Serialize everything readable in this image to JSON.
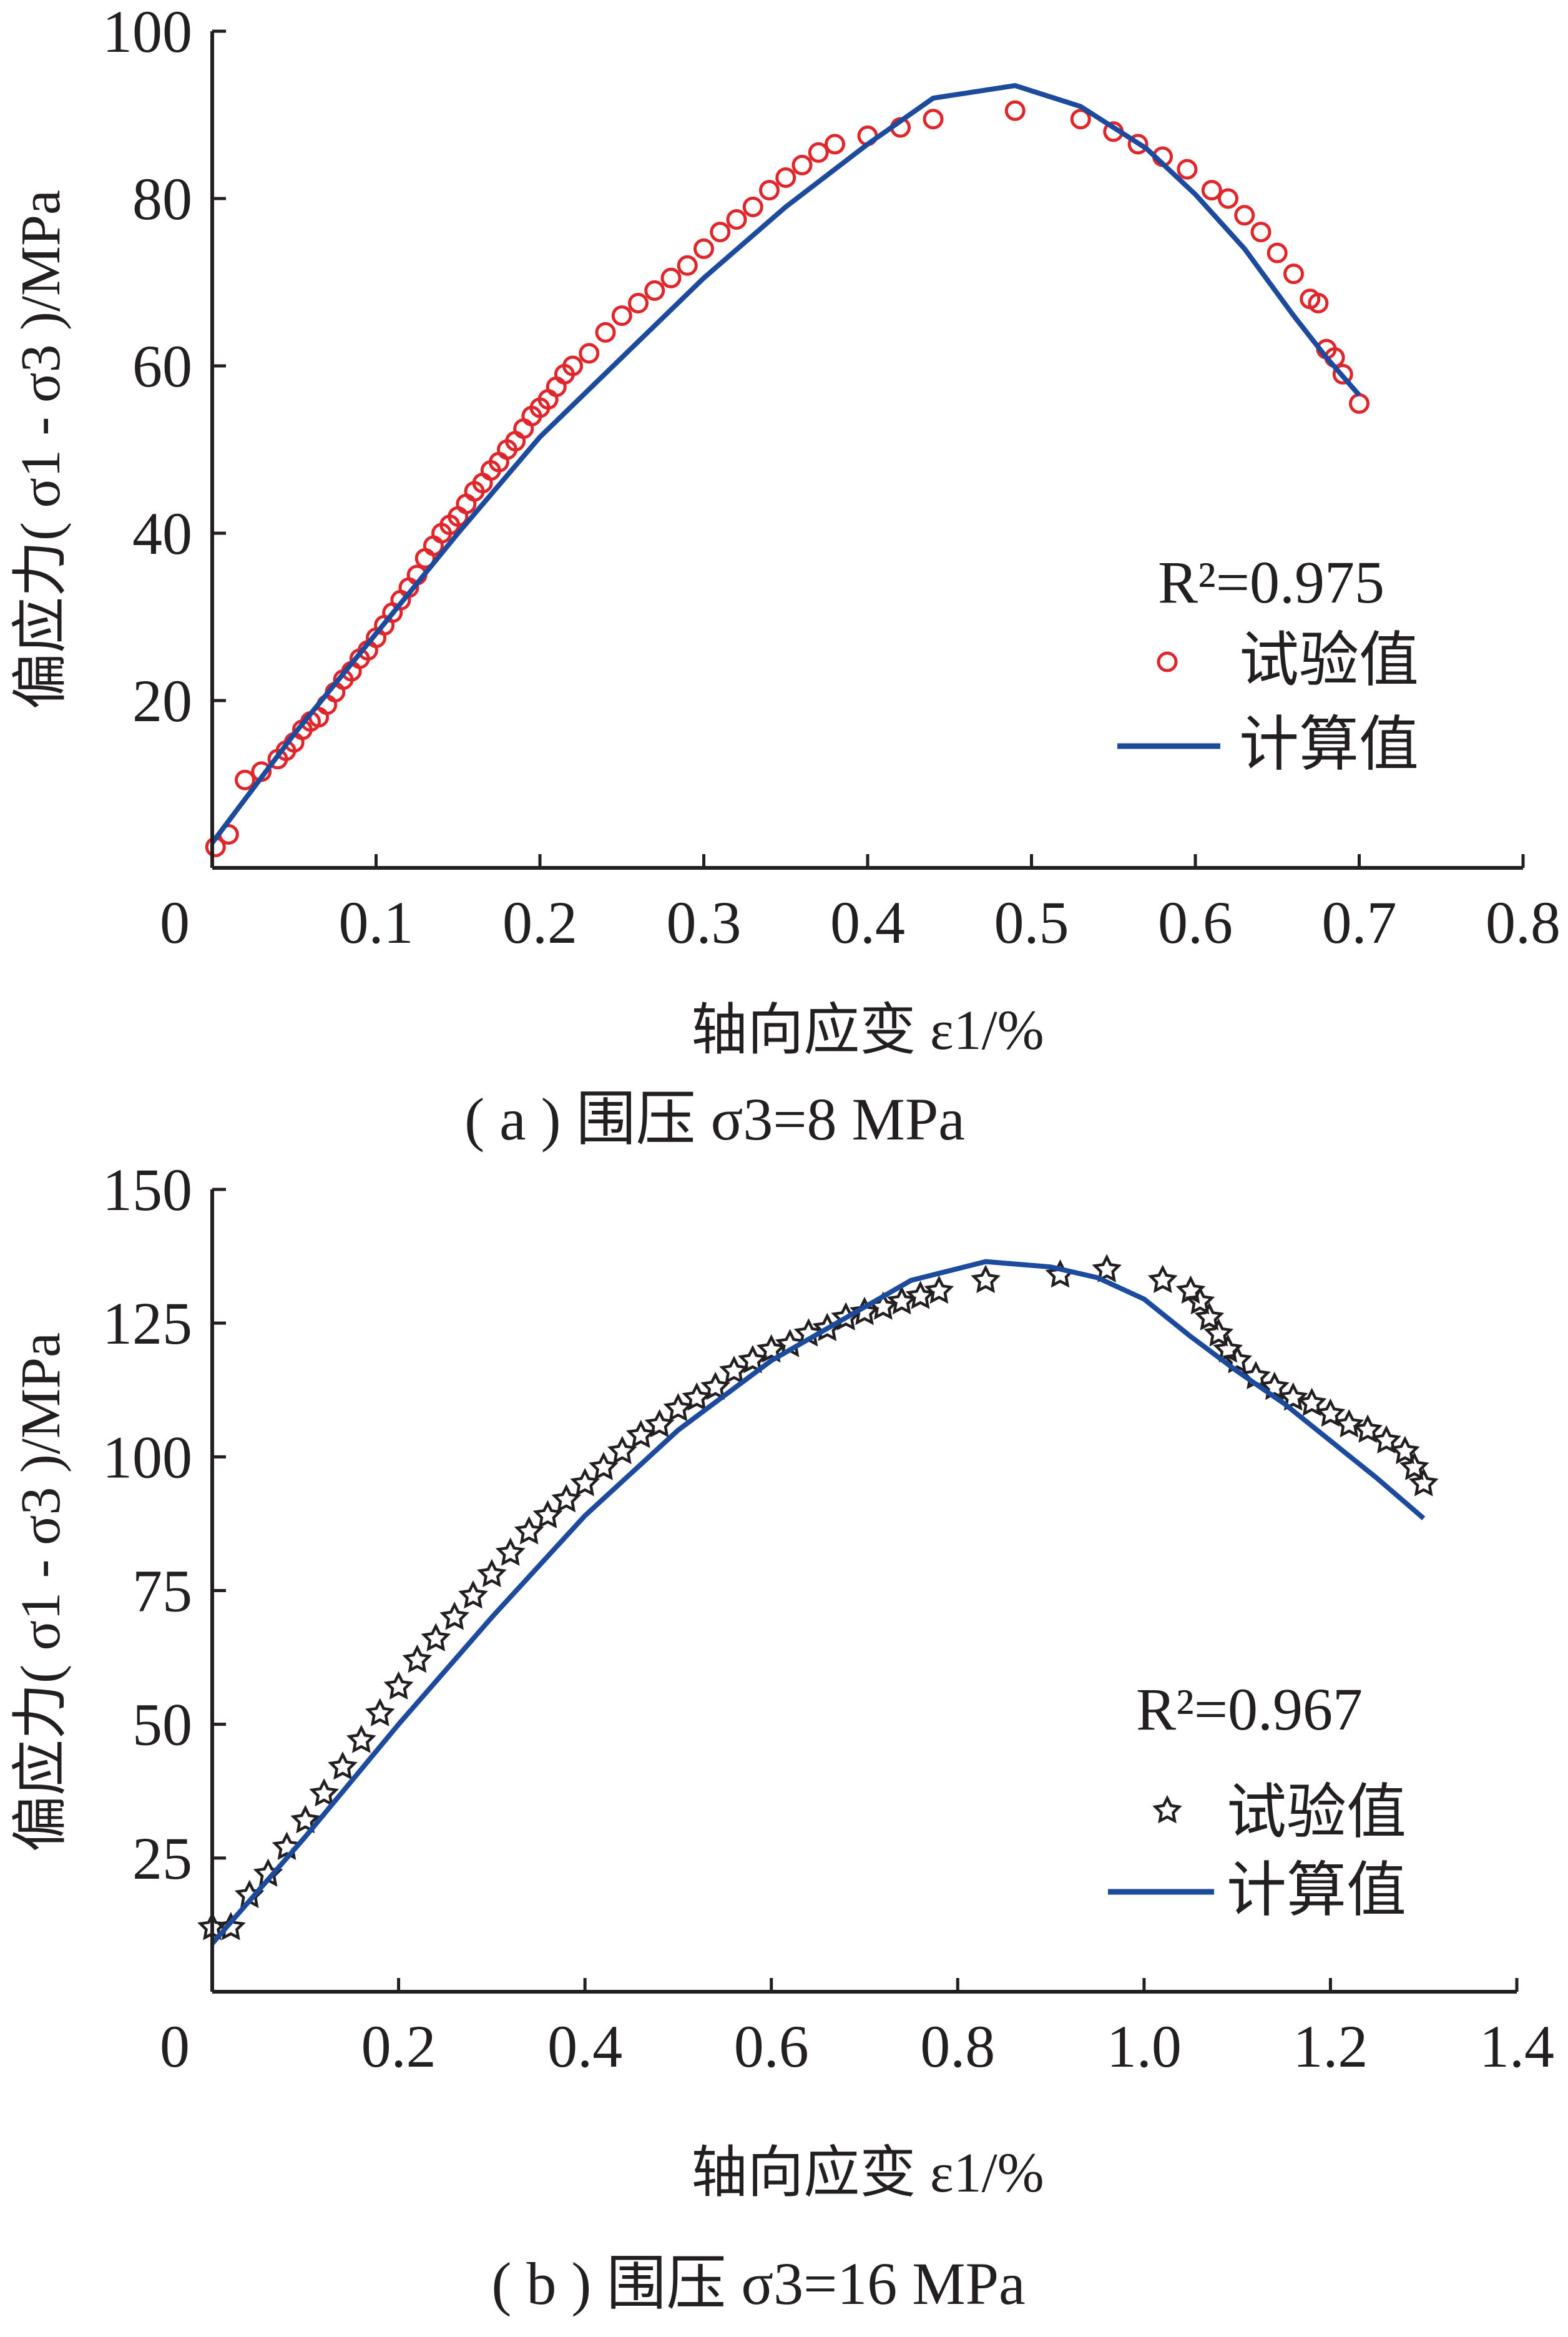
{
  "chart_data": [
    {
      "id": "a",
      "type": "scatter",
      "caption": "( a ) 围压 σ3=8 MPa",
      "xlabel": "轴向应变 ε1/%",
      "ylabel": "偏应力( σ1 - σ3 )/MPa",
      "xlim": [
        0,
        0.8
      ],
      "ylim": [
        0,
        100
      ],
      "xticks": [
        "0",
        "0.1",
        "0.2",
        "0.3",
        "0.4",
        "0.5",
        "0.6",
        "0.7",
        "0.8"
      ],
      "yticks": [
        "20",
        "40",
        "60",
        "80",
        "100"
      ],
      "r2": "R²=0.975",
      "legend_position": "right",
      "series": [
        {
          "name": "试验值",
          "marker": "circle",
          "color": "#e0262a",
          "x": [
            0.002,
            0.01,
            0.02,
            0.03,
            0.04,
            0.045,
            0.05,
            0.055,
            0.06,
            0.065,
            0.07,
            0.075,
            0.08,
            0.085,
            0.09,
            0.095,
            0.1,
            0.105,
            0.11,
            0.115,
            0.12,
            0.125,
            0.13,
            0.135,
            0.14,
            0.145,
            0.15,
            0.155,
            0.16,
            0.165,
            0.17,
            0.175,
            0.18,
            0.185,
            0.19,
            0.195,
            0.2,
            0.205,
            0.21,
            0.215,
            0.22,
            0.23,
            0.24,
            0.25,
            0.26,
            0.27,
            0.28,
            0.29,
            0.3,
            0.31,
            0.32,
            0.33,
            0.34,
            0.35,
            0.36,
            0.37,
            0.38,
            0.4,
            0.42,
            0.44,
            0.49,
            0.53,
            0.55,
            0.565,
            0.58,
            0.595,
            0.61,
            0.62,
            0.63,
            0.64,
            0.65,
            0.66,
            0.67,
            0.675,
            0.68,
            0.685,
            0.69,
            0.7
          ],
          "y": [
            2.5,
            4,
            10.5,
            11.5,
            13,
            14,
            15,
            16.5,
            17.5,
            18,
            19.5,
            21,
            22.5,
            23.5,
            25,
            26,
            27.5,
            29,
            30.5,
            32,
            33.5,
            35,
            37,
            38.5,
            40,
            41,
            42,
            43.5,
            45,
            46,
            47.5,
            48.5,
            50,
            51,
            52.5,
            54,
            55,
            56,
            57.5,
            59,
            60,
            61.5,
            64,
            66,
            67.5,
            69,
            70.5,
            72,
            74,
            76,
            77.5,
            79,
            81,
            82.5,
            84,
            85.5,
            86.5,
            87.5,
            88.5,
            89.5,
            90.5,
            89.5,
            88,
            86.5,
            85,
            83.5,
            81,
            80,
            78,
            76,
            73.5,
            71,
            68,
            67.5,
            62,
            61,
            59,
            55.5
          ]
        },
        {
          "name": "计算值",
          "marker": "line",
          "color": "#1c4a9c",
          "x": [
            0,
            0.05,
            0.1,
            0.15,
            0.2,
            0.25,
            0.3,
            0.35,
            0.4,
            0.44,
            0.49,
            0.53,
            0.57,
            0.6,
            0.63,
            0.66,
            0.68,
            0.7
          ],
          "y": [
            3,
            16,
            28,
            40,
            51.5,
            61,
            70.5,
            79,
            86.5,
            92,
            93.5,
            91,
            86,
            80.5,
            74,
            66,
            61,
            56.5
          ]
        }
      ]
    },
    {
      "id": "b",
      "type": "scatter",
      "caption": "( b ) 围压 σ3=16 MPa",
      "xlabel": "轴向应变 ε1/%",
      "ylabel": "偏应力( σ1 - σ3 )/MPa",
      "xlim": [
        0,
        1.4
      ],
      "ylim": [
        0,
        150
      ],
      "xticks": [
        "0",
        "0.2",
        "0.4",
        "0.6",
        "0.8",
        "1.0",
        "1.2",
        "1.4"
      ],
      "yticks": [
        "25",
        "50",
        "75",
        "100",
        "125",
        "150"
      ],
      "r2": "R²=0.967",
      "legend_position": "right",
      "series": [
        {
          "name": "试验值",
          "marker": "star",
          "color": "#231f20",
          "x": [
            0,
            0.02,
            0.04,
            0.06,
            0.08,
            0.1,
            0.12,
            0.14,
            0.16,
            0.18,
            0.2,
            0.22,
            0.24,
            0.26,
            0.28,
            0.3,
            0.32,
            0.34,
            0.36,
            0.38,
            0.4,
            0.42,
            0.44,
            0.46,
            0.48,
            0.5,
            0.52,
            0.54,
            0.56,
            0.58,
            0.6,
            0.62,
            0.64,
            0.66,
            0.68,
            0.7,
            0.72,
            0.74,
            0.76,
            0.78,
            0.83,
            0.91,
            0.96,
            1.02,
            1.05,
            1.06,
            1.07,
            1.08,
            1.09,
            1.1,
            1.12,
            1.14,
            1.16,
            1.18,
            1.2,
            1.22,
            1.24,
            1.26,
            1.28,
            1.29,
            1.3
          ],
          "y": [
            12,
            12,
            18,
            22,
            27,
            32,
            37,
            42,
            47,
            52,
            57,
            62,
            66,
            70,
            74,
            78,
            82,
            86,
            89,
            92,
            95,
            98,
            101,
            104,
            106,
            109,
            111,
            113,
            116,
            118,
            120,
            121,
            123,
            124,
            126,
            127,
            128,
            129,
            130,
            131,
            133,
            134,
            135,
            133,
            131,
            129,
            126,
            123,
            120,
            118,
            115,
            113,
            111,
            110,
            108,
            106,
            105,
            103,
            101,
            98,
            95
          ]
        },
        {
          "name": "计算值",
          "marker": "line",
          "color": "#1c4a9c",
          "x": [
            0,
            0.1,
            0.2,
            0.3,
            0.4,
            0.5,
            0.6,
            0.7,
            0.75,
            0.83,
            0.9,
            0.95,
            1.0,
            1.05,
            1.1,
            1.15,
            1.2,
            1.25,
            1.3
          ],
          "y": [
            9,
            29,
            50,
            70,
            89,
            105,
            118,
            128,
            133,
            136.5,
            135.5,
            133.5,
            129.5,
            122.5,
            116,
            110,
            103,
            96,
            88.5
          ]
        }
      ]
    }
  ]
}
